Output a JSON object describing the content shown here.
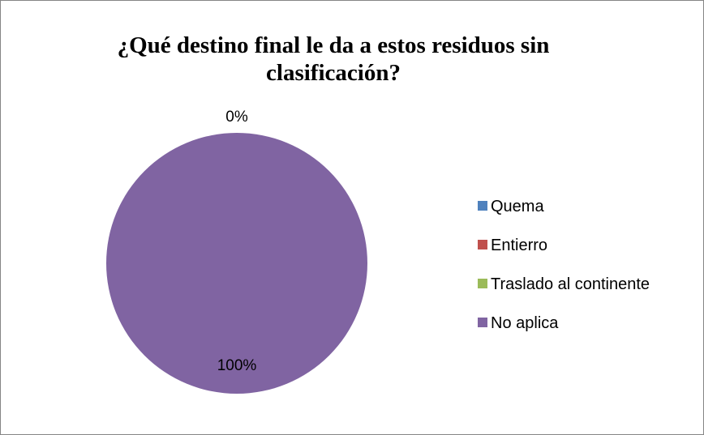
{
  "chart_data": {
    "type": "pie",
    "title": "¿Qué destino final le da a estos residuos sin clasificación?",
    "categories": [
      "Quema",
      "Entierro",
      "Traslado al continente",
      "No aplica"
    ],
    "values": [
      0,
      0,
      0,
      100
    ],
    "data_labels": [
      "0%",
      "0%",
      "0%",
      "100%"
    ],
    "colors": [
      "#4F81BD",
      "#C0504D",
      "#9BBB59",
      "#8064A2"
    ],
    "legend_position": "right"
  }
}
